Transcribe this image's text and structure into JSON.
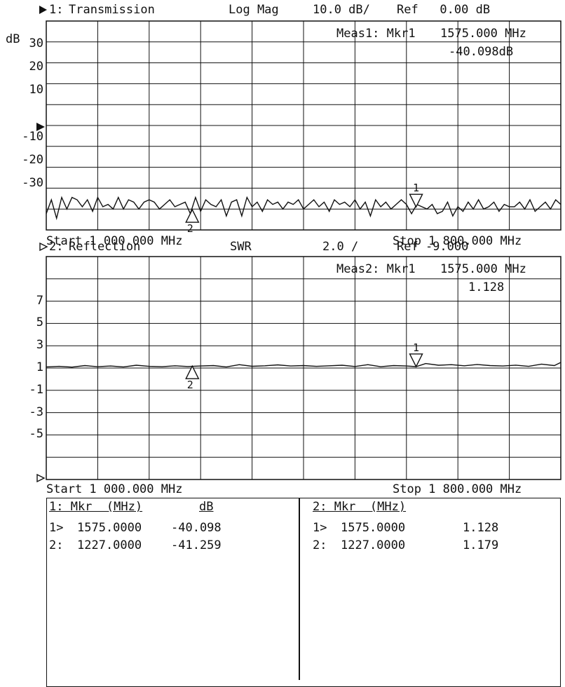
{
  "chart_data": [
    {
      "type": "line",
      "channel_label": "1:",
      "title": "Transmission",
      "format": "Log Mag",
      "scale": "10.0 dB/",
      "ref": "Ref   0.00 dB",
      "unit": "dB",
      "ylim": [
        -50,
        40
      ],
      "y_ticks": [
        30,
        20,
        10,
        0,
        -10,
        -20,
        -30
      ],
      "y_tick_labels": [
        "30",
        "20",
        "10",
        "",
        "-10",
        "-20",
        "-30"
      ],
      "marker_readout": {
        "label": "Meas1: Mkr1",
        "x": "1575.000 MHz",
        "value": "-40.098dB"
      },
      "start_label": "Start 1 000.000 MHz",
      "stop_label": "Stop 1 800.000 MHz",
      "x_range": [
        1000,
        1800
      ],
      "x": [
        1000,
        1008,
        1016,
        1024,
        1032,
        1040,
        1048,
        1056,
        1064,
        1072,
        1080,
        1088,
        1096,
        1104,
        1112,
        1120,
        1128,
        1136,
        1144,
        1152,
        1160,
        1168,
        1176,
        1184,
        1192,
        1200,
        1208,
        1216,
        1224,
        1232,
        1240,
        1248,
        1256,
        1264,
        1272,
        1280,
        1288,
        1296,
        1304,
        1312,
        1320,
        1328,
        1336,
        1344,
        1352,
        1360,
        1368,
        1376,
        1384,
        1392,
        1400,
        1408,
        1416,
        1424,
        1432,
        1440,
        1448,
        1456,
        1464,
        1472,
        1480,
        1488,
        1496,
        1504,
        1512,
        1520,
        1528,
        1536,
        1544,
        1552,
        1560,
        1568,
        1576,
        1584,
        1592,
        1600,
        1608,
        1616,
        1624,
        1632,
        1640,
        1648,
        1656,
        1664,
        1672,
        1680,
        1688,
        1696,
        1704,
        1712,
        1720,
        1728,
        1736,
        1744,
        1752,
        1760,
        1768,
        1776,
        1784,
        1792,
        1800
      ],
      "y": [
        -43,
        -37,
        -45,
        -36,
        -41,
        -36,
        -37,
        -40,
        -37,
        -42,
        -36,
        -40,
        -39,
        -41,
        -36,
        -41,
        -37,
        -38,
        -41,
        -38,
        -37,
        -38,
        -41,
        -39,
        -37,
        -40,
        -39,
        -38,
        -43,
        -36,
        -42,
        -37,
        -39,
        -40,
        -37,
        -44,
        -38,
        -37,
        -44,
        -36,
        -40,
        -38,
        -42,
        -37,
        -39,
        -38,
        -41,
        -38,
        -39,
        -37,
        -41,
        -39,
        -37,
        -40,
        -38,
        -42,
        -37,
        -39,
        -38,
        -40,
        -37,
        -41,
        -38,
        -44,
        -37,
        -40,
        -38,
        -41,
        -39,
        -37,
        -39,
        -43,
        -39,
        -40,
        -41,
        -39,
        -43,
        -42,
        -38,
        -44,
        -40,
        -42,
        -38,
        -41,
        -37,
        -41,
        -40,
        -38,
        -42,
        -39,
        -40,
        -40,
        -38,
        -41,
        -37,
        -42,
        -40,
        -38,
        -41,
        -37,
        -39
      ],
      "markers": [
        {
          "id": "1",
          "x": 1575,
          "y": -40.098
        },
        {
          "id": "2",
          "x": 1227,
          "y": -41.259
        }
      ]
    },
    {
      "type": "line",
      "channel_label": "2:",
      "title": "Reflection",
      "format": "SWR",
      "scale": "2.0 /",
      "ref": "Ref -9.000",
      "unit": "",
      "ylim": [
        -9,
        11
      ],
      "y_ticks": [
        7,
        5,
        3,
        1,
        -1,
        -3,
        -5
      ],
      "y_tick_labels": [
        "7",
        "5",
        "3",
        "1",
        "-1",
        "-3",
        "-5"
      ],
      "marker_readout": {
        "label": "Meas2: Mkr1",
        "x": "1575.000 MHz",
        "value": "1.128"
      },
      "start_label": "Start 1 000.000 MHz",
      "stop_label": "Stop 1 800.000 MHz",
      "x_range": [
        1000,
        1800
      ],
      "x": [
        1000,
        1020,
        1040,
        1060,
        1080,
        1100,
        1120,
        1140,
        1160,
        1180,
        1200,
        1220,
        1240,
        1260,
        1280,
        1300,
        1320,
        1340,
        1360,
        1380,
        1400,
        1420,
        1440,
        1460,
        1480,
        1500,
        1520,
        1540,
        1560,
        1575,
        1590,
        1610,
        1630,
        1650,
        1670,
        1690,
        1710,
        1730,
        1750,
        1770,
        1790,
        1800
      ],
      "y": [
        1.1,
        1.15,
        1.08,
        1.22,
        1.12,
        1.18,
        1.1,
        1.25,
        1.15,
        1.12,
        1.2,
        1.14,
        1.18,
        1.22,
        1.1,
        1.3,
        1.16,
        1.2,
        1.28,
        1.18,
        1.22,
        1.15,
        1.2,
        1.25,
        1.14,
        1.3,
        1.12,
        1.22,
        1.18,
        1.128,
        1.4,
        1.25,
        1.3,
        1.2,
        1.32,
        1.22,
        1.18,
        1.26,
        1.15,
        1.35,
        1.22,
        1.5
      ],
      "markers": [
        {
          "id": "1",
          "x": 1575,
          "y": 1.128
        },
        {
          "id": "2",
          "x": 1227,
          "y": 1.179
        }
      ]
    }
  ],
  "marker_table": {
    "left": {
      "header_mkr": "1: Mkr  (MHz)",
      "header_unit": "dB",
      "rows": [
        {
          "id": "1>",
          "freq": "1575.0000",
          "value": "-40.098"
        },
        {
          "id": "2:",
          "freq": "1227.0000",
          "value": "-41.259"
        }
      ]
    },
    "right": {
      "header_mkr": "2: Mkr  (MHz)",
      "header_unit": "",
      "rows": [
        {
          "id": "1>",
          "freq": "1575.0000",
          "value": "1.128"
        },
        {
          "id": "2:",
          "freq": "1227.0000",
          "value": "1.179"
        }
      ]
    }
  }
}
